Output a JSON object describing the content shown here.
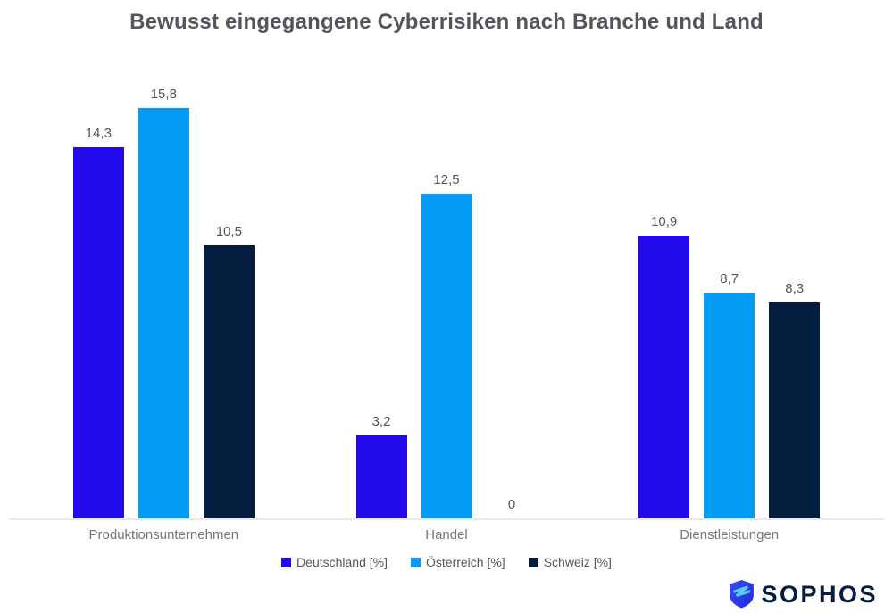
{
  "title": "Bewusst eingegangene Cyberrisiken nach Branche und Land",
  "chart_data": {
    "type": "bar",
    "categories": [
      "Produktionsunternehmen",
      "Handel",
      "Dienstleistungen"
    ],
    "series": [
      {
        "name": "Deutschland [%]",
        "color": "#2209E9",
        "values": [
          14.3,
          3.2,
          10.9
        ],
        "display_values": [
          "14,3",
          "3,2",
          "10,9"
        ]
      },
      {
        "name": "Österreich [%]",
        "color": "#049BF5",
        "values": [
          15.8,
          12.5,
          8.7
        ],
        "display_values": [
          "15,8",
          "12,5",
          "8,7"
        ]
      },
      {
        "name": "Schweiz [%]",
        "color": "#041C3D",
        "values": [
          10.5,
          0,
          8.3
        ],
        "display_values": [
          "10,5",
          "0",
          "8,3"
        ]
      }
    ],
    "ylim": [
      0,
      16.5
    ],
    "grid": false,
    "axis_labels_visible": false,
    "legend_position": "bottom",
    "value_labels": "above-bars, comma decimal separator",
    "baseline_color": "#E9E9EB"
  },
  "legend": {
    "items": [
      {
        "label": "Deutschland [%]",
        "color": "#2209E9"
      },
      {
        "label": "Österreich [%]",
        "color": "#049BF5"
      },
      {
        "label": "Schweiz [%]",
        "color": "#041C3D"
      }
    ]
  },
  "footer": {
    "logo_text": "SOPHOS",
    "logo_color": "#041C3D",
    "shield_icon": "sophos-shield-icon",
    "shield_color": "#2B36EC",
    "bolt_color": "#56C9F6"
  },
  "text_colors": {
    "title": "#53555A",
    "value_label": "#54565A",
    "category_label": "#76777B",
    "legend_label": "#54565A"
  }
}
